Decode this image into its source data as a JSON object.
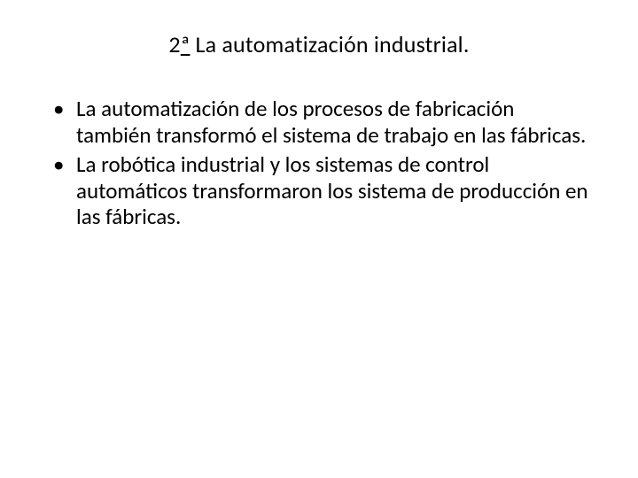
{
  "slide": {
    "title_prefix": "2",
    "title_ord": "ª",
    "title_rest": " La automatización industrial.",
    "bullets": [
      "La automatización de los procesos de fabricación también transformó el sistema de trabajo en las fábricas.",
      "La robótica industrial y los sistemas de control automáticos transformaron los sistema de producción en las fábricas."
    ]
  },
  "colors": {
    "background": "#ffffff",
    "text": "#000000"
  },
  "typography": {
    "title_fontsize": 26,
    "body_fontsize": 25,
    "font_family": "Calibri"
  }
}
